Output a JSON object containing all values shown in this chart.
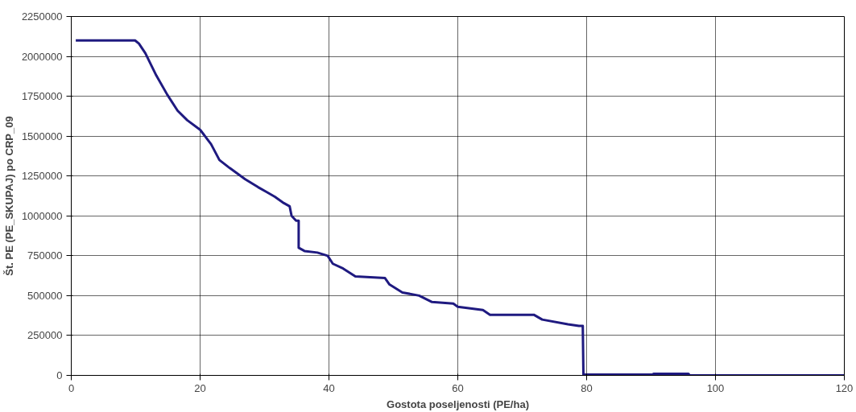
{
  "chart_data": {
    "type": "line",
    "xlabel": "Gostota poseljenosti (PE/ha)",
    "ylabel": "Št. PE (PE_SKUPAJ) po CRP_09",
    "x": [
      0.7,
      9.9,
      10.5,
      11.5,
      13.2,
      14.9,
      16.5,
      18,
      20,
      21.7,
      23,
      24.6,
      27,
      29,
      30.3,
      31.6,
      33,
      33.9,
      34.2,
      34.9,
      35.3,
      35.3,
      36.2,
      38.2,
      39.8,
      40.6,
      42.2,
      44.1,
      48.7,
      49.4,
      51.4,
      54,
      56,
      59.3,
      60,
      63.9,
      65,
      71.8,
      73.1,
      77.1,
      78.8,
      79.4,
      79.5,
      79.7,
      90.2,
      90.4,
      95.8,
      96,
      120
    ],
    "series": [
      {
        "color": "#1f1a80",
        "values": [
          2100000,
          2100000,
          2080000,
          2020000,
          1880000,
          1760000,
          1660000,
          1600000,
          1540000,
          1450000,
          1350000,
          1300000,
          1230000,
          1180000,
          1150000,
          1120000,
          1080000,
          1060000,
          1000000,
          970000,
          970000,
          800000,
          780000,
          770000,
          750000,
          700000,
          670000,
          620000,
          610000,
          570000,
          520000,
          500000,
          460000,
          450000,
          430000,
          410000,
          380000,
          380000,
          350000,
          320000,
          310000,
          310000,
          5000,
          5000,
          5000,
          10000,
          10000,
          0,
          0
        ]
      }
    ],
    "xlim": [
      0,
      120
    ],
    "xticks": [
      0,
      20,
      40,
      60,
      80,
      100,
      120
    ],
    "ylim": [
      0,
      2250000
    ],
    "yticks": [
      0,
      250000,
      500000,
      750000,
      1000000,
      1250000,
      1500000,
      1750000,
      2000000,
      2250000
    ],
    "grid": true,
    "marker": "none",
    "line_style": "solid"
  }
}
